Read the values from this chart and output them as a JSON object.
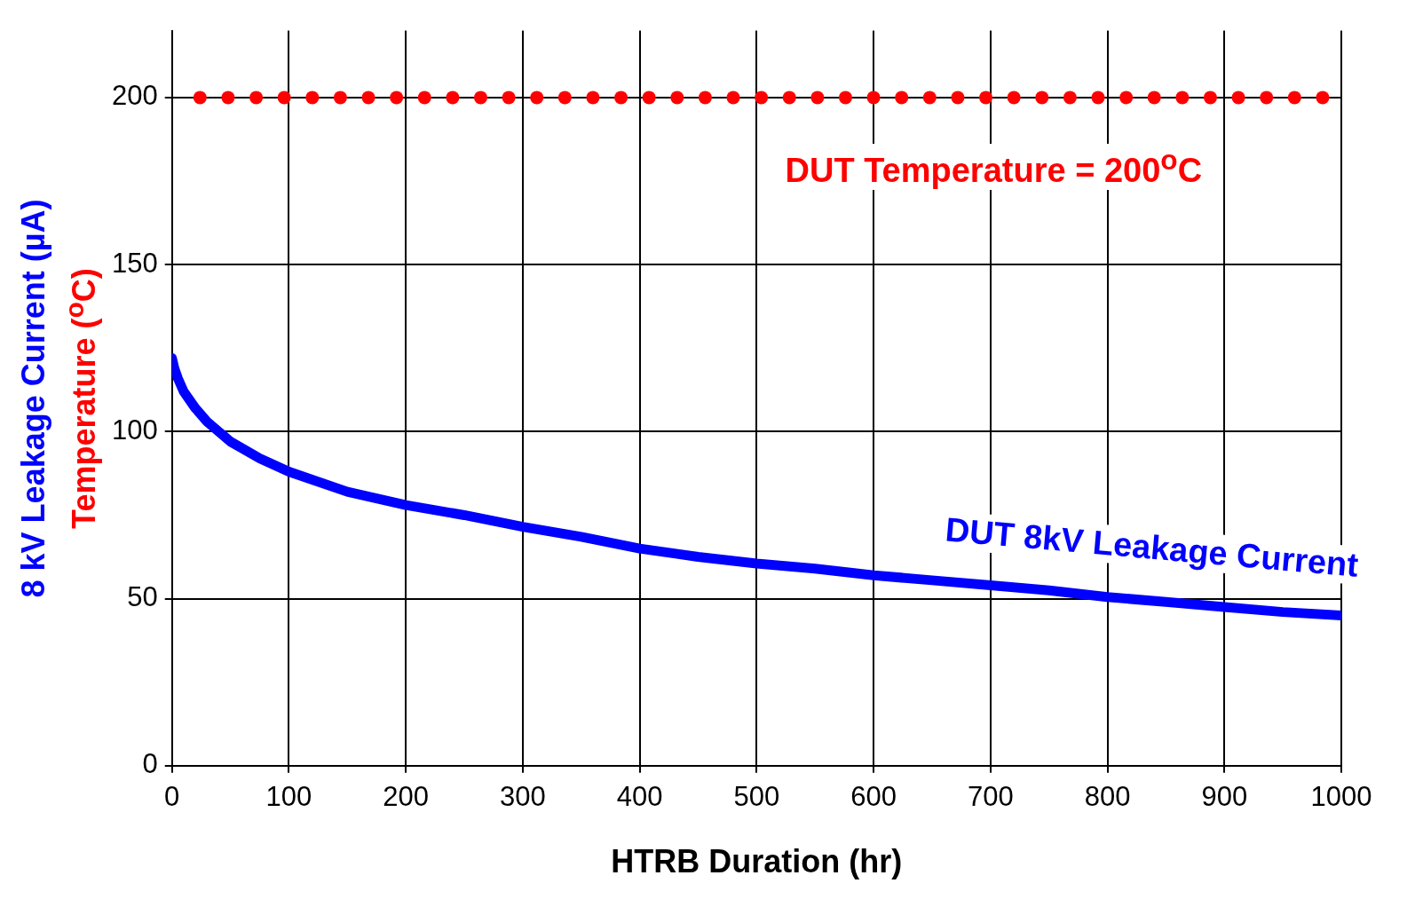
{
  "chart_data": {
    "type": "scatter",
    "xlabel": "HTRB Duration (hr)",
    "ylabel": "8 kV Leakage Current (µA)\nTemperature ($^{o}$C)",
    "xlim": [
      0,
      1000
    ],
    "xticks": [
      0,
      100,
      200,
      300,
      400,
      500,
      600,
      700,
      800,
      900,
      1000
    ],
    "ylim": [
      0,
      220
    ],
    "yticks": [
      0,
      50,
      100,
      150,
      200
    ],
    "grid": true,
    "legend": false,
    "series": [
      {
        "name": "DUT 8kV Leakage Current",
        "type": "line",
        "marker": "none",
        "color": "#0000ff",
        "x": [
          0,
          2,
          5,
          10,
          20,
          30,
          40,
          50,
          75,
          100,
          150,
          200,
          250,
          300,
          350,
          400,
          450,
          500,
          550,
          600,
          650,
          700,
          750,
          800,
          850,
          900,
          950,
          1000
        ],
        "values": [
          122,
          119,
          116,
          112,
          107,
          103,
          100,
          97,
          92,
          88,
          82,
          78,
          75,
          71.5,
          68.5,
          65,
          62.5,
          60.5,
          59,
          57,
          55.5,
          54,
          52.5,
          50.5,
          49,
          47.5,
          46,
          45
        ]
      },
      {
        "name": "DUT Temperature = 200$^{o}$C",
        "marker": "circle",
        "color": "#ff0000",
        "x": [
          24,
          48,
          72,
          96,
          120,
          144,
          168,
          192,
          216,
          240,
          264,
          288,
          312,
          336,
          360,
          384,
          408,
          432,
          456,
          480,
          504,
          528,
          552,
          576,
          600,
          624,
          648,
          672,
          696,
          720,
          744,
          768,
          792,
          816,
          840,
          864,
          888,
          912,
          936,
          960,
          984
        ],
        "values": [
          200,
          200,
          200,
          200,
          200,
          200,
          200,
          200,
          200,
          200,
          200,
          200,
          200,
          200,
          200,
          200,
          200,
          200,
          200,
          200,
          200,
          200,
          200,
          200,
          200,
          200,
          200,
          200,
          200,
          200,
          200,
          200,
          200,
          200,
          200,
          200,
          200,
          200,
          200,
          200,
          200
        ]
      }
    ]
  }
}
